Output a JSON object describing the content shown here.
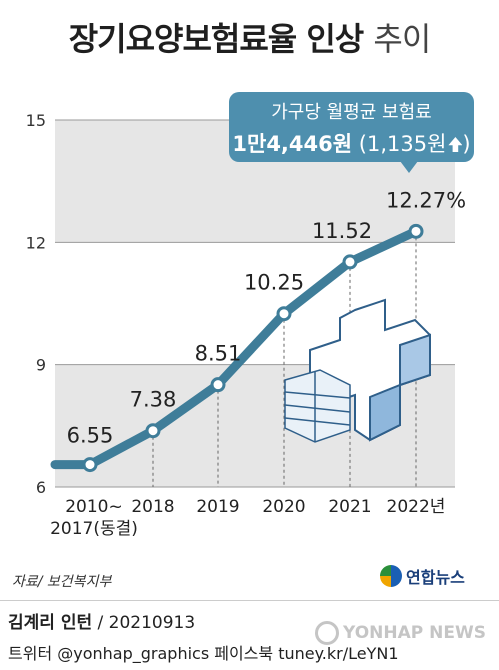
{
  "title": {
    "main": "장기요양보험료율 인상",
    "sub": "추이"
  },
  "chart_data": {
    "type": "line",
    "categories": [
      "2010~\n2017(동결)",
      "2018",
      "2019",
      "2020",
      "2021",
      "2022년"
    ],
    "values": [
      6.55,
      7.38,
      8.51,
      10.25,
      11.52,
      12.27
    ],
    "value_labels": [
      "6.55",
      "7.38",
      "8.51",
      "10.25",
      "11.52",
      "12.27%"
    ],
    "y_ticks": [
      "6",
      "9",
      "12",
      "15"
    ],
    "ylim": [
      6,
      15
    ],
    "series_color": "#3f7d99",
    "point_color": "#ffffff",
    "band_color": "#e6e6e6"
  },
  "callout": {
    "line1": "가구당 월평균 보험료",
    "amount": "1만4,446원",
    "change": "(1,135원",
    "color": "#4e8fae"
  },
  "footer": {
    "source": "자료/ 보건복지부",
    "logo": "연합뉴스",
    "author": "김계리 인턴",
    "date": " / 20210913",
    "social": "트위터 @yonhap_graphics  페이스북 tuney.kr/LeYN1",
    "watermark": "YONHAP NEWS"
  }
}
